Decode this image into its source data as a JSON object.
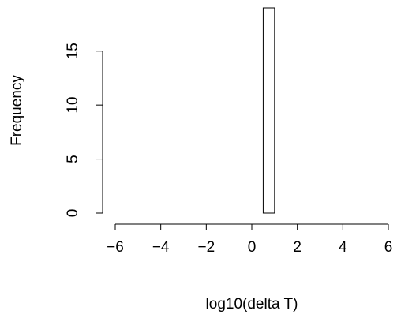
{
  "chart_data": {
    "type": "histogram",
    "xlabel": "log10(delta T)",
    "ylabel": "Frequency",
    "bins": [
      0.5,
      1.0
    ],
    "counts": [
      19
    ],
    "color": "#ffffff",
    "xlim": [
      -6,
      6
    ],
    "xticks": [
      {
        "value": -6,
        "label": "−6"
      },
      {
        "value": -4,
        "label": "−4"
      },
      {
        "value": -2,
        "label": "−2"
      },
      0,
      2,
      4,
      6
    ],
    "ylim": [
      0,
      19
    ],
    "yticks": [
      0,
      5,
      10,
      15
    ]
  }
}
